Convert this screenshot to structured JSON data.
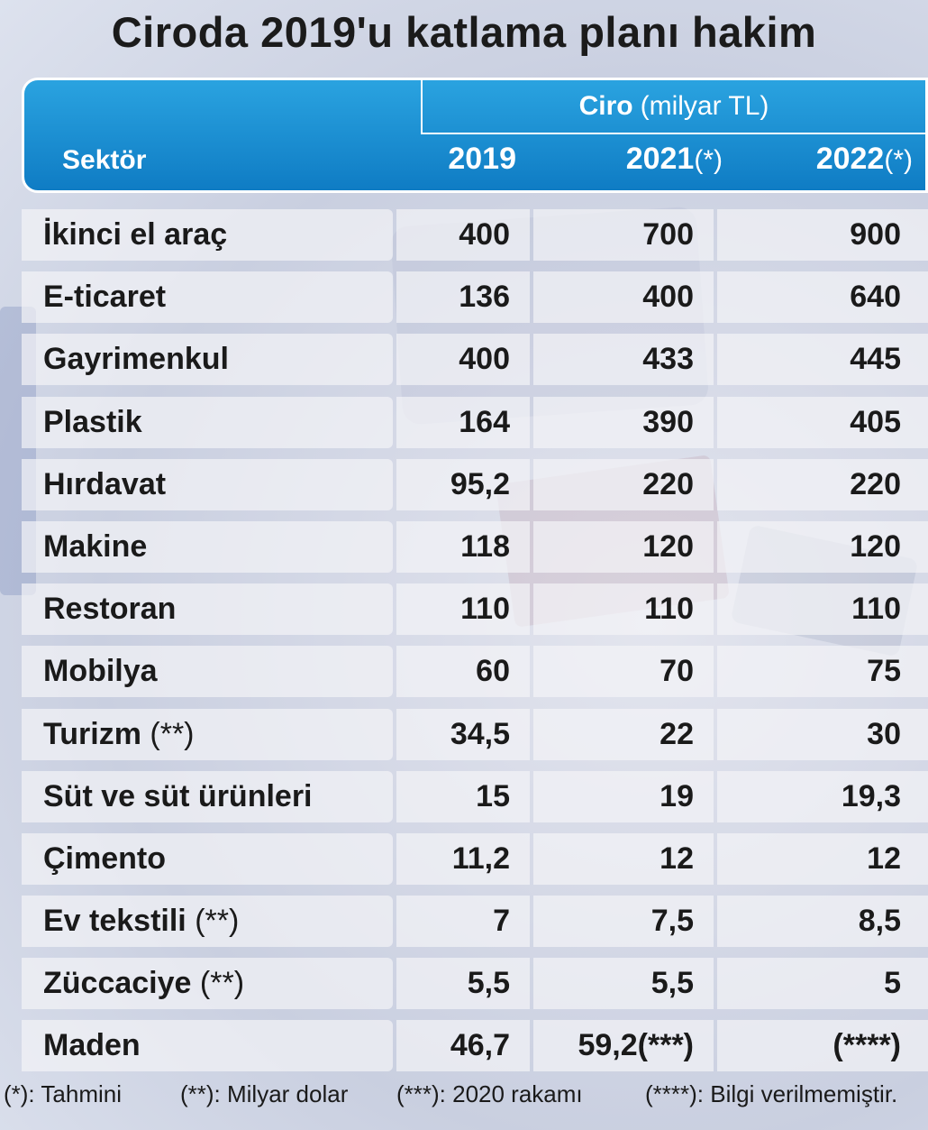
{
  "title": "Ciroda 2019'u katlama planı hakim",
  "header": {
    "group_bold": "Ciro",
    "group_rest": "(milyar TL)",
    "sector_label": "Sektör",
    "years": [
      {
        "label": "2019",
        "mark": ""
      },
      {
        "label": "2021",
        "mark": "(*)"
      },
      {
        "label": "2022",
        "mark": "(*)"
      }
    ]
  },
  "chart_data": {
    "type": "table",
    "title": "Ciroda 2019'u katlama planı hakim",
    "columns": [
      "Sektör",
      "2019",
      "2021(*)",
      "2022(*)"
    ],
    "rows": [
      {
        "sector": "İkinci el araç",
        "note": "",
        "v2019": "400",
        "v2021": "700",
        "v2022": "900"
      },
      {
        "sector": "E-ticaret",
        "note": "",
        "v2019": "136",
        "v2021": "400",
        "v2022": "640"
      },
      {
        "sector": "Gayrimenkul",
        "note": "",
        "v2019": "400",
        "v2021": "433",
        "v2022": "445"
      },
      {
        "sector": "Plastik",
        "note": "",
        "v2019": "164",
        "v2021": "390",
        "v2022": "405"
      },
      {
        "sector": "Hırdavat",
        "note": "",
        "v2019": "95,2",
        "v2021": "220",
        "v2022": "220"
      },
      {
        "sector": "Makine",
        "note": "",
        "v2019": "118",
        "v2021": "120",
        "v2022": "120"
      },
      {
        "sector": "Restoran",
        "note": "",
        "v2019": "110",
        "v2021": "110",
        "v2022": "110"
      },
      {
        "sector": "Mobilya",
        "note": "",
        "v2019": "60",
        "v2021": "70",
        "v2022": "75"
      },
      {
        "sector": "Turizm",
        "note": "(**)",
        "v2019": "34,5",
        "v2021": "22",
        "v2022": "30"
      },
      {
        "sector": "Süt ve süt ürünleri",
        "note": "",
        "v2019": "15",
        "v2021": "19",
        "v2022": "19,3"
      },
      {
        "sector": "Çimento",
        "note": "",
        "v2019": "11,2",
        "v2021": "12",
        "v2022": "12"
      },
      {
        "sector": "Ev tekstili",
        "note": "(**)",
        "v2019": "7",
        "v2021": "7,5",
        "v2022": "8,5"
      },
      {
        "sector": "Züccaciye",
        "note": "(**)",
        "v2019": "5,5",
        "v2021": "5,5",
        "v2022": "5"
      },
      {
        "sector": "Maden",
        "note": "",
        "v2019": "46,7",
        "v2021": "59,2(***)",
        "v2022": "(****)"
      }
    ]
  },
  "footnotes": [
    "(*): Tahmini",
    "(**): Milyar dolar",
    "(***): 2020 rakamı",
    "(****): Bilgi verilmemiştir."
  ],
  "colors": {
    "header_top": "#2aa3e0",
    "header_bottom": "#0f7cc4"
  }
}
